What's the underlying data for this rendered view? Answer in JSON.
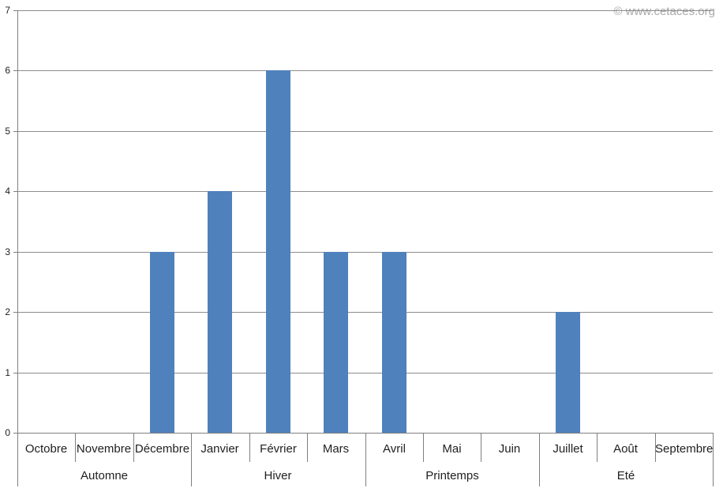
{
  "watermark": "© www.cetaces.org",
  "chart_data": {
    "type": "bar",
    "title": "",
    "xlabel": "",
    "ylabel": "",
    "categories": [
      "Octobre",
      "Novembre",
      "Décembre",
      "Janvier",
      "Février",
      "Mars",
      "Avril",
      "Mai",
      "Juin",
      "Juillet",
      "Août",
      "Septembre"
    ],
    "values": [
      0,
      0,
      3,
      4,
      6,
      3,
      3,
      0,
      0,
      2,
      0,
      0
    ],
    "groups": [
      {
        "label": "Automne",
        "span": 3
      },
      {
        "label": "Hiver",
        "span": 3
      },
      {
        "label": "Printemps",
        "span": 3
      },
      {
        "label": "Eté",
        "span": 3
      }
    ],
    "ylim": [
      0,
      7
    ],
    "yticks": [
      0,
      1,
      2,
      3,
      4,
      5,
      6,
      7
    ],
    "grid": "horizontal",
    "legend": "none",
    "colors": {
      "bar": "#4F81BD",
      "gridline": "#8C8C8C",
      "axis": "#7F7F7F",
      "label": "#1F1F1F",
      "watermark": "#A9A9A9"
    }
  }
}
